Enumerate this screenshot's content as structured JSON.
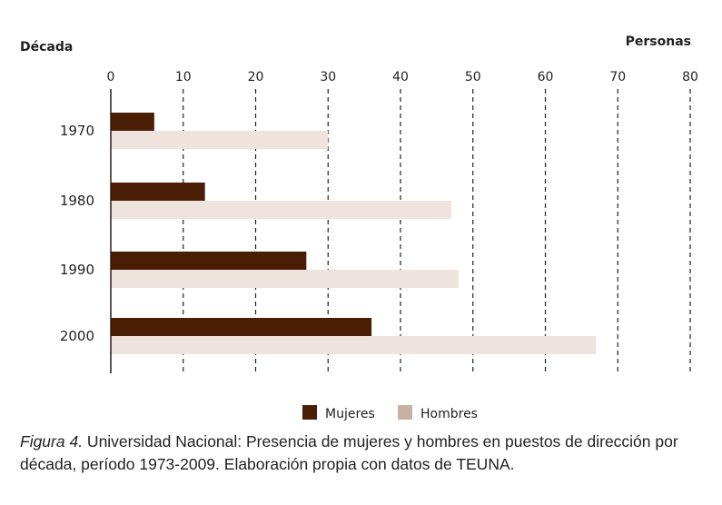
{
  "chart_data": {
    "type": "bar",
    "orientation": "horizontal",
    "ylabel": "Década",
    "xlabel": "Personas",
    "categories": [
      "1970",
      "1980",
      "1990",
      "2000"
    ],
    "series": [
      {
        "name": "Mujeres",
        "color": "#4a1d05",
        "values": [
          6,
          13,
          27,
          36
        ]
      },
      {
        "name": "Hombres",
        "color": "#eee4dd",
        "legend_color": "#c6b2a4",
        "values": [
          30,
          47,
          48,
          67
        ]
      }
    ],
    "xlim": [
      0,
      80
    ],
    "xticks": [
      0,
      10,
      20,
      30,
      40,
      50,
      60,
      70,
      80
    ],
    "grid": true,
    "grid_style": "dashed",
    "legend_position": "bottom-center"
  },
  "caption": {
    "label": "Figura 4.",
    "text": " Universidad Nacional: Presencia de mujeres y hombres en puestos de dirección por década, período 1973-2009. Elaboración propia con datos de TEUNA."
  }
}
